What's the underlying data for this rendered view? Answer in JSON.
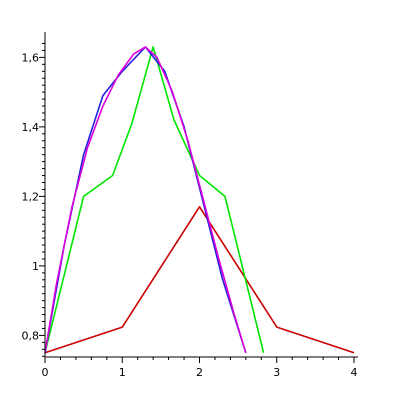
{
  "chart_data": {
    "type": "line",
    "title": "",
    "xlabel": "",
    "ylabel": "",
    "xlim": [
      0,
      4
    ],
    "ylim": [
      0.735,
      1.65
    ],
    "grid": false,
    "legend": "none",
    "x_ticks": [
      0,
      1,
      2,
      3,
      4
    ],
    "x_tick_labels": [
      "0",
      "1",
      "2",
      "3",
      "4"
    ],
    "y_ticks": [
      0.8,
      1.0,
      1.2,
      1.4,
      1.6
    ],
    "y_tick_labels": [
      "0,8",
      "1",
      "1,2",
      "1,4",
      "1,6"
    ],
    "series": [
      {
        "color": "#cc0000",
        "x": [
          0,
          1,
          2,
          3,
          4
        ],
        "y": [
          0.75,
          0.824,
          1.17,
          0.824,
          0.75
        ]
      },
      {
        "color": "#00e600",
        "x": [
          0,
          0.5,
          0.875,
          1.125,
          1.4,
          1.67,
          2.0,
          2.33,
          2.83
        ],
        "y": [
          0.75,
          1.2,
          1.26,
          1.41,
          1.63,
          1.42,
          1.26,
          1.2,
          0.75
        ]
      },
      {
        "color": "#2222dd",
        "x": [
          0,
          0.25,
          0.5,
          0.75,
          1.0,
          1.3,
          1.55,
          1.8,
          2.05,
          2.3,
          2.6
        ],
        "y": [
          0.75,
          1.06,
          1.32,
          1.49,
          1.56,
          1.63,
          1.56,
          1.4,
          1.18,
          0.96,
          0.75
        ]
      },
      {
        "color": "#dd00dd",
        "x": [
          0,
          0.15,
          0.35,
          0.55,
          0.75,
          0.95,
          1.15,
          1.3,
          1.45,
          1.65,
          1.85,
          2.05,
          2.25,
          2.45,
          2.6
        ],
        "y": [
          0.75,
          0.95,
          1.17,
          1.34,
          1.46,
          1.55,
          1.61,
          1.63,
          1.6,
          1.5,
          1.36,
          1.19,
          1.02,
          0.86,
          0.75
        ]
      }
    ]
  }
}
